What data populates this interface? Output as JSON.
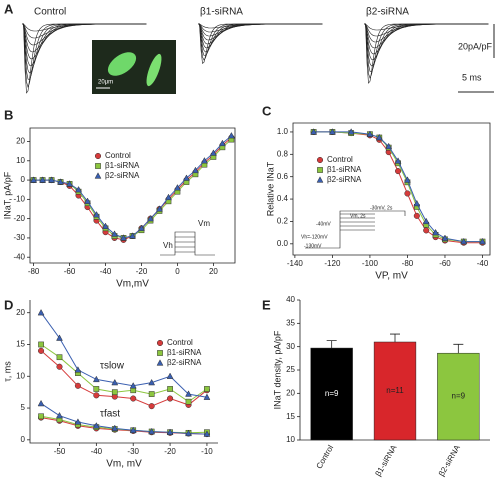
{
  "panel_a": {
    "label": "A",
    "titles": [
      "Control",
      "β1-siRNA",
      "β2-siRNA"
    ],
    "scale_y": "20pA/pF",
    "scale_x": "5 ms",
    "image_scale": "20μm"
  },
  "chart_data": [
    {
      "type": "line",
      "label": "B",
      "xlabel": "Vm,mV",
      "ylabel": "INaT, pA/pF",
      "x": [
        -80,
        -75,
        -70,
        -65,
        -60,
        -55,
        -50,
        -45,
        -40,
        -35,
        -30,
        -25,
        -20,
        -15,
        -10,
        -5,
        0,
        5,
        10,
        15,
        20,
        25,
        30
      ],
      "series": [
        {
          "name": "Control",
          "color": "#d63b3b",
          "marker": "circle",
          "values": [
            0,
            0,
            0,
            -1,
            -3,
            -8,
            -14,
            -21,
            -27,
            -30,
            -31,
            -29,
            -25,
            -20,
            -15,
            -10,
            -5,
            0,
            4,
            9,
            13,
            18,
            22
          ]
        },
        {
          "name": "β1-siRNA",
          "color": "#8cc63f",
          "marker": "square",
          "values": [
            0,
            0,
            0,
            -1,
            -2,
            -6,
            -12,
            -19,
            -25,
            -29,
            -30,
            -29,
            -26,
            -21,
            -16,
            -11,
            -6,
            -1,
            3,
            8,
            12,
            17,
            21
          ]
        },
        {
          "name": "β2-siRNA",
          "color": "#3a5fb0",
          "marker": "triangle",
          "values": [
            0,
            0,
            0,
            -1,
            -2,
            -5,
            -11,
            -18,
            -24,
            -28,
            -30,
            -29,
            -25,
            -20,
            -15,
            -9,
            -4,
            1,
            5,
            10,
            14,
            19,
            23
          ]
        }
      ],
      "xlim": [
        -82,
        32
      ],
      "ylim": [
        -43,
        27
      ],
      "xticks": [
        -80,
        -60,
        -40,
        -20,
        0,
        20
      ],
      "yticks": [
        -40,
        -30,
        -20,
        -10,
        0,
        10,
        20
      ],
      "inset_labels": [
        "Vh",
        "Vm"
      ]
    },
    {
      "type": "line",
      "label": "C",
      "xlabel": "VP, mV",
      "ylabel": "Relative INaT",
      "x": [
        -130,
        -120,
        -110,
        -100,
        -95,
        -90,
        -85,
        -80,
        -75,
        -70,
        -65,
        -60,
        -50,
        -40
      ],
      "series": [
        {
          "name": "Control",
          "color": "#d63b3b",
          "marker": "circle",
          "values": [
            1,
            1,
            0.99,
            0.97,
            0.93,
            0.82,
            0.65,
            0.45,
            0.25,
            0.12,
            0.06,
            0.03,
            0.01,
            0.01
          ]
        },
        {
          "name": "β1-siRNA",
          "color": "#8cc63f",
          "marker": "square",
          "values": [
            1,
            1,
            0.99,
            0.98,
            0.95,
            0.86,
            0.72,
            0.55,
            0.33,
            0.17,
            0.08,
            0.04,
            0.02,
            0.02
          ]
        },
        {
          "name": "β2-siRNA",
          "color": "#3a5fb0",
          "marker": "triangle",
          "values": [
            1,
            1,
            1,
            0.98,
            0.95,
            0.87,
            0.74,
            0.57,
            0.36,
            0.2,
            0.1,
            0.05,
            0.02,
            0.02
          ]
        }
      ],
      "xlim": [
        -141,
        -36
      ],
      "ylim": [
        -0.1,
        1.08
      ],
      "xticks": [
        -140,
        -120,
        -100,
        -80,
        -60,
        -40
      ],
      "yticks": [
        {
          "value": 0,
          "label": "0.0"
        },
        0.2,
        0.4,
        0.6,
        0.8,
        {
          "value": 1,
          "label": "1.0"
        }
      ],
      "inset_labels": [
        "-30mV, 2s",
        "-40mV",
        "Vm, 2s",
        "Vh=-120mV",
        "-130mV"
      ]
    },
    {
      "type": "line",
      "label": "D",
      "xlabel": "Vm, mV",
      "ylabel": "τ, ms",
      "x": [
        -55,
        -50,
        -45,
        -40,
        -35,
        -30,
        -25,
        -20,
        -15,
        -10
      ],
      "series": [
        {
          "name": "Control",
          "color": "#d63b3b",
          "marker": "circle",
          "values_slow": [
            14,
            11.5,
            8.5,
            7,
            6.8,
            6.5,
            5.3,
            6.5,
            5.5,
            7.8
          ],
          "values_fast": [
            3.5,
            3,
            2.2,
            1.8,
            1.6,
            1.4,
            1.2,
            1.1,
            1,
            0.9
          ]
        },
        {
          "name": "β1-siRNA",
          "color": "#8cc63f",
          "marker": "square",
          "values_slow": [
            15,
            13,
            10.5,
            8,
            7.5,
            7.8,
            7.2,
            8,
            6,
            8
          ],
          "values_fast": [
            3.7,
            3.2,
            2.4,
            2,
            1.7,
            1.5,
            1.3,
            1.2,
            1.1,
            1.2
          ]
        },
        {
          "name": "β2-siRNA",
          "color": "#3a5fb0",
          "marker": "triangle",
          "values_slow": [
            20,
            16,
            11,
            9.5,
            9,
            8.5,
            9,
            10,
            7.2,
            6.7
          ],
          "values_fast": [
            5.7,
            3.8,
            2.8,
            2.2,
            1.8,
            1.5,
            1.3,
            1.2,
            1,
            0.9
          ]
        }
      ],
      "xlim": [
        -58,
        -7
      ],
      "ylim": [
        -0.5,
        22
      ],
      "xticks": [
        -50,
        -40,
        -30,
        -20,
        -10
      ],
      "yticks": [
        0,
        5,
        10,
        15,
        20
      ],
      "annotations": [
        "τslow",
        "τfast"
      ]
    },
    {
      "type": "bar",
      "label": "E",
      "ylabel": "INaT density, pA/pF",
      "categories": [
        "Control",
        "β1-siRNA",
        "β2-siRNA"
      ],
      "values": [
        29.7,
        31,
        28.6
      ],
      "errors": [
        1.6,
        1.7,
        1.9
      ],
      "colors": [
        "#000000",
        "#d8262b",
        "#8cc63f"
      ],
      "n_labels": [
        "n=9",
        "n=11",
        "n=9"
      ],
      "ylim": [
        10,
        40
      ],
      "yticks": [
        10,
        15,
        20,
        25,
        30,
        35,
        40
      ]
    }
  ]
}
